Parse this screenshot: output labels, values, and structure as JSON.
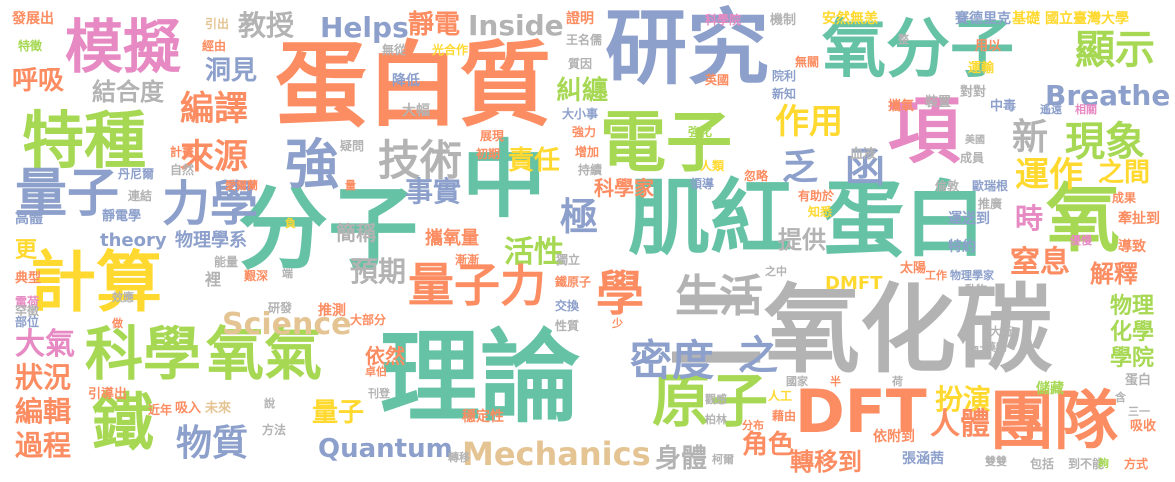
{
  "word_cloud": {
    "words": [
      {
        "text": "二氧化碳",
        "color": "#b3b3b3"
      },
      {
        "text": "理論",
        "color": "#66c2a5"
      },
      {
        "text": "蛋白質",
        "color": "#fc8d62"
      },
      {
        "text": "研究",
        "color": "#8da0cb"
      },
      {
        "text": "中",
        "color": "#66c2a5"
      },
      {
        "text": "肌紅",
        "color": "#66c2a5"
      },
      {
        "text": "分子",
        "color": "#66c2a5"
      },
      {
        "text": "蛋白",
        "color": "#66c2a5"
      },
      {
        "text": "氧分子",
        "color": "#66c2a5"
      },
      {
        "text": "電子",
        "color": "#a6d854"
      },
      {
        "text": "計算",
        "color": "#ffd92f"
      },
      {
        "text": "科學",
        "color": "#a6d854"
      },
      {
        "text": "氧氣",
        "color": "#a6d854"
      },
      {
        "text": "模擬",
        "color": "#e78ac3"
      },
      {
        "text": "特種",
        "color": "#a6d854"
      },
      {
        "text": "項",
        "color": "#e78ac3"
      },
      {
        "text": "氧",
        "color": "#a6d854"
      },
      {
        "text": "DFT",
        "color": "#fc8d62"
      },
      {
        "text": "團隊",
        "color": "#fc8d62"
      },
      {
        "text": "原子",
        "color": "#a6d854"
      },
      {
        "text": "鐵",
        "color": "#a6d854"
      },
      {
        "text": "量子",
        "color": "#8da0cb"
      },
      {
        "text": "力學",
        "color": "#8da0cb"
      },
      {
        "text": "強",
        "color": "#8da0cb"
      },
      {
        "text": "量子力",
        "color": "#fc8d62"
      },
      {
        "text": "學",
        "color": "#fc8d62"
      },
      {
        "text": "技術",
        "color": "#b3b3b3"
      },
      {
        "text": "生活",
        "color": "#b3b3b3"
      },
      {
        "text": "密度",
        "color": "#8da0cb"
      },
      {
        "text": "之",
        "color": "#8da0cb"
      },
      {
        "text": "顯示",
        "color": "#a6d854"
      },
      {
        "text": "現象",
        "color": "#a6d854"
      },
      {
        "text": "Breathe",
        "color": "#8da0cb"
      },
      {
        "text": "Inside",
        "color": "#b3b3b3"
      },
      {
        "text": "Helps",
        "color": "#8da0cb"
      },
      {
        "text": "靜電",
        "color": "#fc8d62"
      },
      {
        "text": "教授",
        "color": "#b3b3b3"
      },
      {
        "text": "洞見",
        "color": "#8da0cb"
      },
      {
        "text": "結合度",
        "color": "#b3b3b3"
      },
      {
        "text": "編譯",
        "color": "#fc8d62"
      },
      {
        "text": "來源",
        "color": "#fc8d62"
      },
      {
        "text": "作用",
        "color": "#ffd92f"
      },
      {
        "text": "糾纏",
        "color": "#a6d854"
      },
      {
        "text": "責任",
        "color": "#ffd92f"
      },
      {
        "text": "事實",
        "color": "#8da0cb"
      },
      {
        "text": "極",
        "color": "#8da0cb"
      },
      {
        "text": "活性",
        "color": "#a6d854"
      },
      {
        "text": "預期",
        "color": "#b3b3b3"
      },
      {
        "text": "簡稱",
        "color": "#b3b3b3"
      },
      {
        "text": "提供",
        "color": "#b3b3b3"
      },
      {
        "text": "函",
        "color": "#8da0cb"
      },
      {
        "text": "乏",
        "color": "#8da0cb"
      },
      {
        "text": "新",
        "color": "#b3b3b3"
      },
      {
        "text": "運作",
        "color": "#ffd92f"
      },
      {
        "text": "之間",
        "color": "#ffd92f"
      },
      {
        "text": "時",
        "color": "#e78ac3"
      },
      {
        "text": "窒息",
        "color": "#fc8d62"
      },
      {
        "text": "解釋",
        "color": "#fc8d62"
      },
      {
        "text": "物理",
        "color": "#a6d854"
      },
      {
        "text": "化學",
        "color": "#a6d854"
      },
      {
        "text": "學院",
        "color": "#a6d854"
      },
      {
        "text": "扮演",
        "color": "#ffd92f"
      },
      {
        "text": "人體",
        "color": "#fc8d62"
      },
      {
        "text": "角色",
        "color": "#fc8d62"
      },
      {
        "text": "身體",
        "color": "#b3b3b3"
      },
      {
        "text": "轉移到",
        "color": "#fc8d62"
      },
      {
        "text": "Science",
        "color": "#e5c494"
      },
      {
        "text": "Quantum",
        "color": "#8da0cb"
      },
      {
        "text": "Mechanics",
        "color": "#e5c494"
      },
      {
        "text": "物質",
        "color": "#8da0cb"
      },
      {
        "text": "量子",
        "color": "#ffd92f"
      },
      {
        "text": "大氣",
        "color": "#e78ac3"
      },
      {
        "text": "狀況",
        "color": "#fc8d62"
      },
      {
        "text": "編輯",
        "color": "#fc8d62"
      },
      {
        "text": "過程",
        "color": "#fc8d62"
      },
      {
        "text": "呼吸",
        "color": "#fc8d62"
      },
      {
        "text": "更",
        "color": "#ffd92f"
      },
      {
        "text": "theory",
        "color": "#8da0cb"
      },
      {
        "text": "物理學系",
        "color": "#8da0cb"
      },
      {
        "text": "攜氧量",
        "color": "#fc8d62"
      },
      {
        "text": "科學家",
        "color": "#fc8d62"
      },
      {
        "text": "依然",
        "color": "#fc8d62"
      },
      {
        "text": "DMFT",
        "color": "#ffd92f"
      },
      {
        "text": "國立臺灣大學",
        "color": "#ffd92f"
      },
      {
        "text": "賽德里克",
        "color": "#8da0cb"
      },
      {
        "text": "基礎",
        "color": "#ffd92f"
      },
      {
        "text": "安然無恙",
        "color": "#ffd92f"
      },
      {
        "text": "發展出",
        "color": "#fc8d62"
      },
      {
        "text": "證明",
        "color": "#fc8d62"
      },
      {
        "text": "無從",
        "color": "#b3b3b3"
      },
      {
        "text": "降低",
        "color": "#8da0cb"
      },
      {
        "text": "大幅",
        "color": "#b3b3b3"
      },
      {
        "text": "穩定性",
        "color": "#fc8d62"
      },
      {
        "text": "張涵茜",
        "color": "#8da0cb"
      },
      {
        "text": "依附到",
        "color": "#fc8d62"
      },
      {
        "text": "包括",
        "color": "#b3b3b3"
      },
      {
        "text": "到不能",
        "color": "#b3b3b3"
      },
      {
        "text": "方式",
        "color": "#fc8d62"
      },
      {
        "text": "吸收",
        "color": "#fc8d62"
      },
      {
        "text": "蛋白",
        "color": "#b3b3b3"
      },
      {
        "text": "儲藏",
        "color": "#a6d854"
      },
      {
        "text": "導致",
        "color": "#fc8d62"
      },
      {
        "text": "牽扯到",
        "color": "#fc8d62"
      },
      {
        "text": "運送到",
        "color": "#8da0cb"
      },
      {
        "text": "特約",
        "color": "#8da0cb"
      },
      {
        "text": "太陽",
        "color": "#fc8d62"
      },
      {
        "text": "運輸",
        "color": "#ffd92f"
      },
      {
        "text": "裝置",
        "color": "#b3b3b3"
      },
      {
        "text": "對對",
        "color": "#b3b3b3"
      },
      {
        "text": "中毒",
        "color": "#8da0cb"
      },
      {
        "text": "攜氧",
        "color": "#fc8d62"
      },
      {
        "text": "血液",
        "color": "#b3b3b3"
      },
      {
        "text": "機制",
        "color": "#b3b3b3"
      },
      {
        "text": "用以",
        "color": "#fc8d62"
      },
      {
        "text": "靜電學",
        "color": "#8da0cb"
      },
      {
        "text": "高體",
        "color": "#8da0cb"
      },
      {
        "text": "典型",
        "color": "#fc8d62"
      },
      {
        "text": "電荷",
        "color": "#e78ac3"
      },
      {
        "text": "罕徵",
        "color": "#b3b3b3"
      },
      {
        "text": "部位",
        "color": "#8da0cb"
      },
      {
        "text": "引導出",
        "color": "#fc8d62"
      },
      {
        "text": "吸入",
        "color": "#fc8d62"
      },
      {
        "text": "未來",
        "color": "#e5c494"
      },
      {
        "text": "交換",
        "color": "#8da0cb"
      },
      {
        "text": "性質",
        "color": "#b3b3b3"
      },
      {
        "text": "推測",
        "color": "#fc8d62"
      },
      {
        "text": "大部分",
        "color": "#fc8d62"
      },
      {
        "text": "研發",
        "color": "#b3b3b3"
      },
      {
        "text": "方法",
        "color": "#b3b3b3"
      },
      {
        "text": "近年",
        "color": "#fc8d62"
      },
      {
        "text": "特徵",
        "color": "#a6d854"
      },
      {
        "text": "經由",
        "color": "#fc8d62"
      },
      {
        "text": "引出",
        "color": "#e5c494"
      },
      {
        "text": "光合作",
        "color": "#ffd92f"
      },
      {
        "text": "王名儒",
        "color": "#b3b3b3"
      },
      {
        "text": "質因",
        "color": "#b3b3b3"
      },
      {
        "text": "科學院",
        "color": "#e78ac3"
      },
      {
        "text": "英國",
        "color": "#fc8d62"
      },
      {
        "text": "院利",
        "color": "#8da0cb"
      },
      {
        "text": "新知",
        "color": "#8da0cb"
      },
      {
        "text": "無關",
        "color": "#fc8d62"
      },
      {
        "text": "大小事",
        "color": "#8da0cb"
      },
      {
        "text": "強力",
        "color": "#fc8d62"
      },
      {
        "text": "強化",
        "color": "#a6d854"
      },
      {
        "text": "增加",
        "color": "#fc8d62"
      },
      {
        "text": "持續",
        "color": "#b3b3b3"
      },
      {
        "text": "初期",
        "color": "#fc8d62"
      },
      {
        "text": "人類",
        "color": "#ffd92f"
      },
      {
        "text": "忽略",
        "color": "#fc8d62"
      },
      {
        "text": "領導",
        "color": "#8da0cb"
      },
      {
        "text": "有助於",
        "color": "#fc8d62"
      },
      {
        "text": "知悉",
        "color": "#ffd92f"
      },
      {
        "text": "倫敦",
        "color": "#b3b3b3"
      },
      {
        "text": "歐瑞根",
        "color": "#8da0cb"
      },
      {
        "text": "推廣",
        "color": "#b3b3b3"
      },
      {
        "text": "成員",
        "color": "#b3b3b3"
      },
      {
        "text": "美國",
        "color": "#b3b3b3"
      },
      {
        "text": "成果",
        "color": "#fc8d62"
      },
      {
        "text": "遙遠",
        "color": "#8da0cb"
      },
      {
        "text": "相關",
        "color": "#e78ac3"
      },
      {
        "text": "疑問",
        "color": "#b3b3b3"
      },
      {
        "text": "展現",
        "color": "#fc8d62"
      },
      {
        "text": "計畫",
        "color": "#fc8d62"
      },
      {
        "text": "自然",
        "color": "#b3b3b3"
      },
      {
        "text": "丹尼爾",
        "color": "#8da0cb"
      },
      {
        "text": "愛爾蘭",
        "color": "#fc8d62"
      },
      {
        "text": "連結",
        "color": "#b3b3b3"
      },
      {
        "text": "能量",
        "color": "#b3b3b3"
      },
      {
        "text": "艱深",
        "color": "#fc8d62"
      },
      {
        "text": "端",
        "color": "#b3b3b3"
      },
      {
        "text": "裡",
        "color": "#b3b3b3"
      },
      {
        "text": "負",
        "color": "#ffd92f"
      },
      {
        "text": "量",
        "color": "#fc8d62"
      },
      {
        "text": "漸漸",
        "color": "#fc8d62"
      },
      {
        "text": "獨立",
        "color": "#b3b3b3"
      },
      {
        "text": "鐵原子",
        "color": "#fc8d62"
      },
      {
        "text": "之中",
        "color": "#b3b3b3"
      },
      {
        "text": "工作",
        "color": "#fc8d62"
      },
      {
        "text": "物理學家",
        "color": "#8da0cb"
      },
      {
        "text": "動物",
        "color": "#b3b3b3"
      },
      {
        "text": "效應",
        "color": "#b3b3b3"
      },
      {
        "text": "做",
        "color": "#fc8d62"
      },
      {
        "text": "少",
        "color": "#fc8d62"
      },
      {
        "text": "卓伯",
        "color": "#fc8d62"
      },
      {
        "text": "刊登",
        "color": "#b3b3b3"
      },
      {
        "text": "說",
        "color": "#b3b3b3"
      },
      {
        "text": "觀感",
        "color": "#b3b3b3"
      },
      {
        "text": "人工",
        "color": "#ffd92f"
      },
      {
        "text": "藉由",
        "color": "#fc8d62"
      },
      {
        "text": "柏林",
        "color": "#b3b3b3"
      },
      {
        "text": "分布",
        "color": "#fc8d62"
      },
      {
        "text": "轉移",
        "color": "#b3b3b3"
      },
      {
        "text": "柯爾",
        "color": "#b3b3b3"
      },
      {
        "text": "國家",
        "color": "#b3b3b3"
      },
      {
        "text": "半",
        "color": "#fc8d62"
      },
      {
        "text": "荷",
        "color": "#b3b3b3"
      },
      {
        "text": "國王",
        "color": "#b3b3b3"
      },
      {
        "text": "大衛",
        "color": "#b3b3b3"
      },
      {
        "text": "藥物",
        "color": "#b3b3b3"
      },
      {
        "text": "含",
        "color": "#b3b3b3"
      },
      {
        "text": "三一",
        "color": "#b3b3b3"
      },
      {
        "text": "雙雙",
        "color": "#b3b3b3"
      },
      {
        "text": "夠",
        "color": "#a6d854"
      },
      {
        "text": "整",
        "color": "#b3b3b3"
      },
      {
        "text": "優慢",
        "color": "#e78ac3"
      }
    ]
  }
}
